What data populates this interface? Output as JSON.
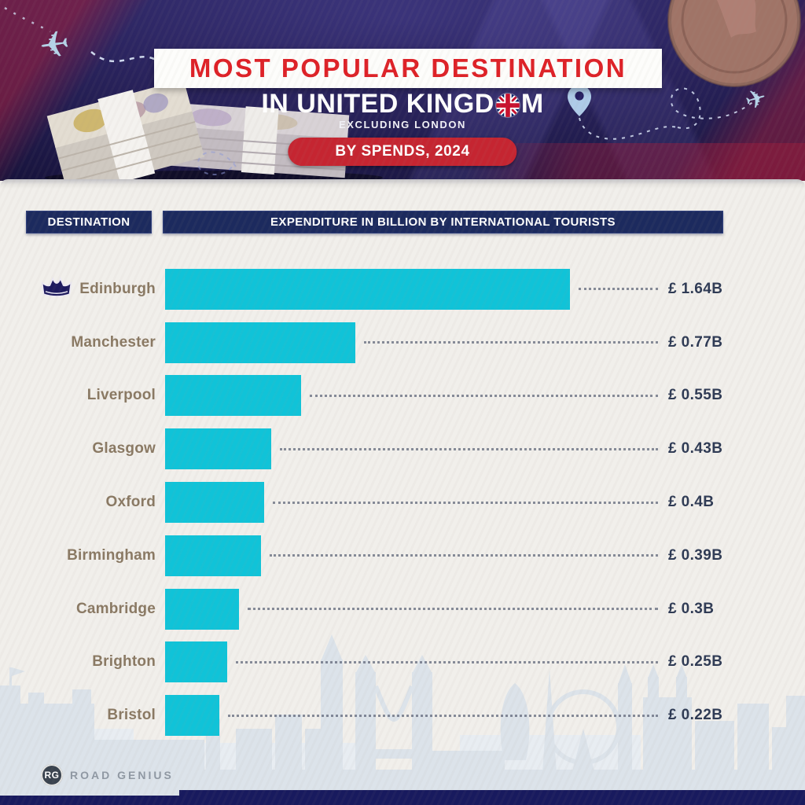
{
  "header": {
    "title": "MOST POPULAR DESTINATION",
    "subtitle_pre": "IN UNITED KINGD",
    "subtitle_post": "M",
    "note": "EXCLUDING LONDON",
    "badge": "BY SPENDS, 2024"
  },
  "columns": {
    "destination": "DESTINATION",
    "expenditure": "EXPENDITURE IN BILLION BY INTERNATIONAL TOURISTS"
  },
  "chart_data": {
    "type": "bar",
    "orientation": "horizontal",
    "title": "Most Popular Destination in United Kingdom (excluding London) by spends, 2024",
    "unit": "GBP billions",
    "categories": [
      "Edinburgh",
      "Manchester",
      "Liverpool",
      "Glasgow",
      "Oxford",
      "Birmingham",
      "Cambridge",
      "Brighton",
      "Bristol"
    ],
    "values": [
      1.64,
      0.77,
      0.55,
      0.43,
      0.4,
      0.39,
      0.3,
      0.25,
      0.22
    ],
    "value_labels": [
      "£ 1.64B",
      "£ 0.77B",
      "£ 0.55B",
      "£ 0.43B",
      "£ 0.4B",
      "£ 0.39B",
      "£ 0.3B",
      "£ 0.25B",
      "£ 0.22B"
    ],
    "xlim": [
      0,
      1.64
    ],
    "bar_color": "#10c3d8",
    "grid": false,
    "legend": false,
    "leader_lines": "dotted",
    "highlight_first": "crown-icon"
  },
  "footer": {
    "logo_initials": "RG",
    "logo_text": "ROAD GENIUS"
  },
  "colors": {
    "header_bg": "#2a2268",
    "accent_red": "#de2127",
    "badge_red": "#c52531",
    "navy_box": "#1c2a5e",
    "bar_cyan": "#10c3d8",
    "label_brown": "#8a7963",
    "value_navy": "#2e3a54",
    "body_bg": "#f1efeb",
    "skyline": "#dce3ea"
  }
}
